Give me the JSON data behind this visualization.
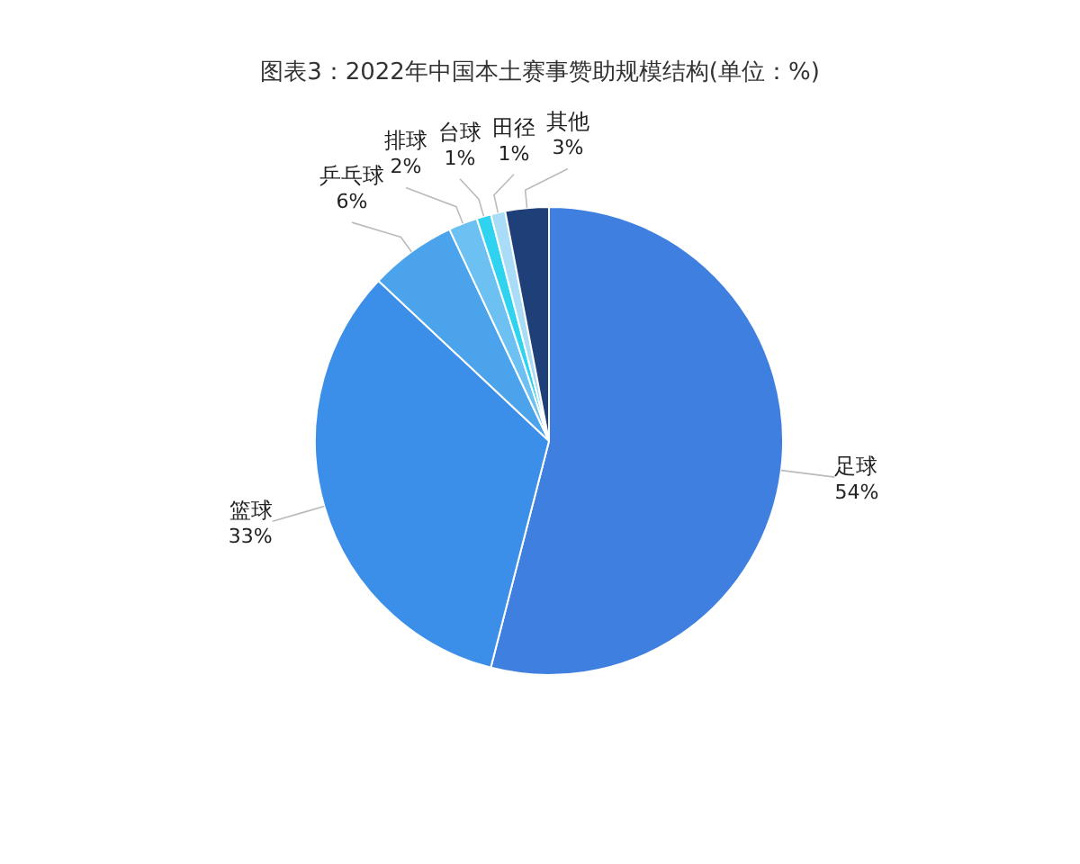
{
  "chart_data": {
    "type": "pie",
    "title": "图表3：2022年中国本土赛事赞助规模结构(单位：%)",
    "categories": [
      "足球",
      "篮球",
      "乒乓球",
      "排球",
      "台球",
      "田径",
      "其他"
    ],
    "values": [
      54,
      33,
      6,
      2,
      1,
      1,
      3
    ],
    "value_labels": [
      "54%",
      "33%",
      "6%",
      "2%",
      "1%",
      "1%",
      "3%"
    ],
    "colors": [
      "#3f7fe0",
      "#3b8fe8",
      "#4ba3ec",
      "#6cc0f2",
      "#2fd3f0",
      "#a8dcf7",
      "#1f3f78"
    ]
  }
}
